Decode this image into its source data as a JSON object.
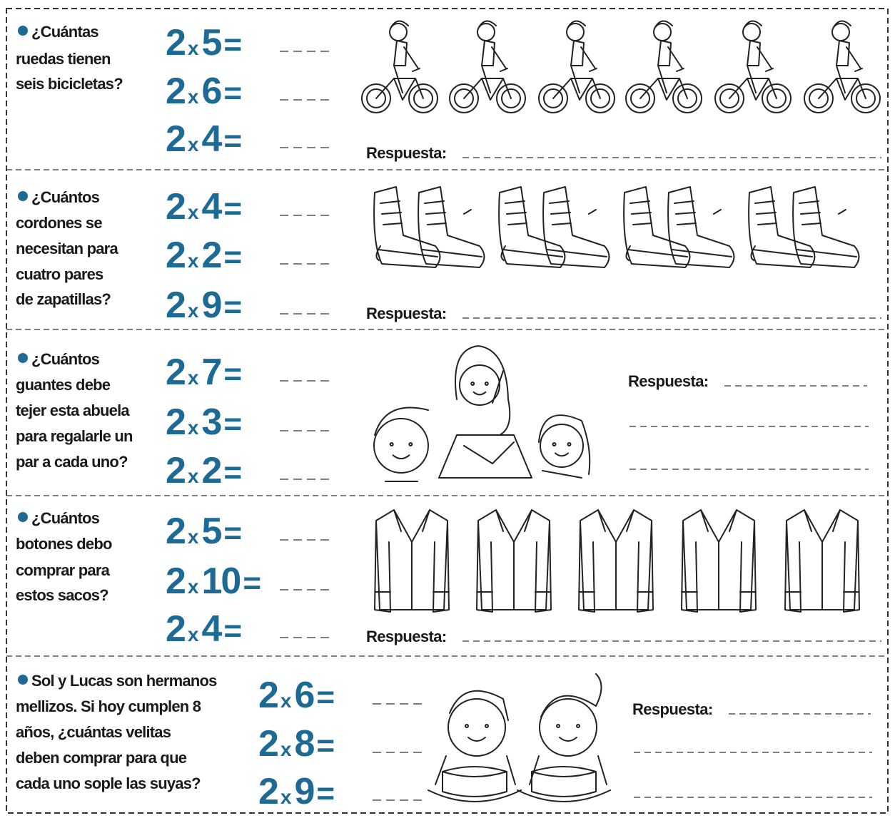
{
  "times": "x",
  "equals": "=",
  "answer_label": "Respuesta:",
  "sections": [
    {
      "question": [
        "¿Cuántas",
        "ruedas tienen",
        "seis bicicletas?"
      ],
      "equations": [
        [
          2,
          5
        ],
        [
          2,
          6
        ],
        [
          2,
          4
        ]
      ]
    },
    {
      "question": [
        "¿Cuántos",
        "cordones se",
        "necesitan para",
        "cuatro pares",
        "de zapatillas?"
      ],
      "equations": [
        [
          2,
          4
        ],
        [
          2,
          2
        ],
        [
          2,
          9
        ]
      ]
    },
    {
      "question": [
        "¿Cuántos",
        "guantes debe",
        "tejer esta abuela",
        "para regalarle un",
        "par a cada uno?"
      ],
      "equations": [
        [
          2,
          7
        ],
        [
          2,
          3
        ],
        [
          2,
          2
        ]
      ]
    },
    {
      "question": [
        "¿Cuántos",
        "botones debo",
        "comprar para",
        "estos sacos?"
      ],
      "equations": [
        [
          2,
          5
        ],
        [
          2,
          10
        ],
        [
          2,
          4
        ]
      ]
    },
    {
      "question": [
        "Sol y Lucas son hermanos",
        "mellizos. Si hoy cumplen 8",
        "años, ¿cuántas velitas",
        "deben comprar para que",
        "cada uno sople las suyas?"
      ],
      "equations": [
        [
          2,
          6
        ],
        [
          2,
          8
        ],
        [
          2,
          9
        ]
      ]
    }
  ]
}
